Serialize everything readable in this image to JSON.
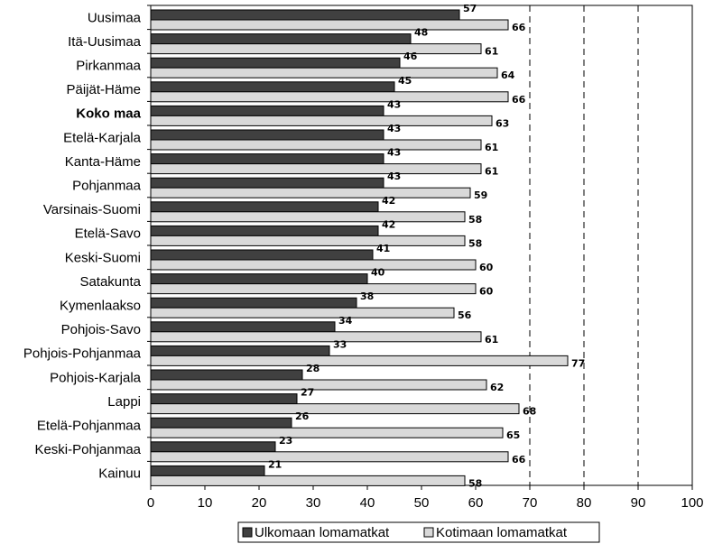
{
  "chart_data": {
    "type": "bar",
    "orientation": "horizontal",
    "title": "",
    "xlabel": "",
    "ylabel": "",
    "xlim": [
      0,
      100
    ],
    "x_ticks": [
      0,
      10,
      20,
      30,
      40,
      50,
      60,
      70,
      80,
      90,
      100
    ],
    "grid": "dashed vertical at 70, 80, 90",
    "legend_position": "bottom",
    "categories": [
      "Uusimaa",
      "Itä-Uusimaa",
      "Pirkanmaa",
      "Päijät-Häme",
      "Koko maa",
      "Etelä-Karjala",
      "Kanta-Häme",
      "Pohjanmaa",
      "Varsinais-Suomi",
      "Etelä-Savo",
      "Keski-Suomi",
      "Satakunta",
      "Kymenlaakso",
      "Pohjois-Savo",
      "Pohjois-Pohjanmaa",
      "Pohjois-Karjala",
      "Lappi",
      "Etelä-Pohjanmaa",
      "Keski-Pohjanmaa",
      "Kainuu"
    ],
    "highlight_category": "Koko maa",
    "series": [
      {
        "name": "Ulkomaan lomamatkat",
        "color": "#404040",
        "values": [
          57,
          48,
          46,
          45,
          43,
          43,
          43,
          43,
          42,
          42,
          41,
          40,
          38,
          34,
          33,
          28,
          27,
          26,
          23,
          21
        ]
      },
      {
        "name": "Kotimaan lomamatkat",
        "color": "#d9d9d9",
        "values": [
          66,
          61,
          64,
          66,
          63,
          61,
          61,
          59,
          58,
          58,
          60,
          60,
          56,
          61,
          77,
          62,
          68,
          65,
          66,
          58
        ]
      }
    ]
  }
}
